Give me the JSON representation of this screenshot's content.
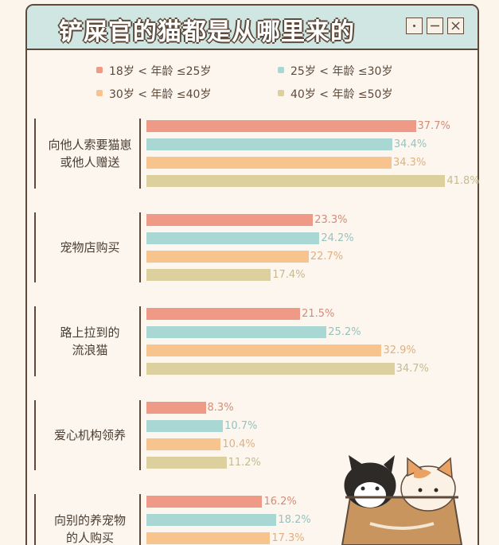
{
  "chart_data": {
    "type": "bar",
    "orientation": "horizontal",
    "title": "铲屎官的猫都是从哪里来的",
    "categories": [
      "向他人索要猫崽\n或他人赠送",
      "宠物店购买",
      "路上拉到的\n流浪猫",
      "爱心机构领养",
      "向别的养宠物\n的人购买"
    ],
    "series": [
      {
        "name": "18岁 < 年龄 ≤25岁",
        "color": "#ee9a86",
        "values": [
          37.7,
          23.3,
          21.5,
          8.3,
          16.2
        ],
        "value_labels": [
          "37.7%",
          "23.3%",
          "21.5%",
          "8.3%",
          "16.2%"
        ]
      },
      {
        "name": "25岁 < 年龄 ≤30岁",
        "color": "#a9d8d4",
        "values": [
          34.4,
          24.2,
          25.2,
          10.7,
          18.2
        ],
        "value_labels": [
          "34.4%",
          "24.2%",
          "25.2%",
          "10.7%",
          "18.2%"
        ]
      },
      {
        "name": "30岁 < 年龄 ≤40岁",
        "color": "#f8c48e",
        "values": [
          34.3,
          22.7,
          32.9,
          10.4,
          17.3
        ],
        "value_labels": [
          "34.3%",
          "22.7%",
          "32.9%",
          "10.4%",
          "17.3%"
        ]
      },
      {
        "name": "40岁 < 年龄 ≤50岁",
        "color": "#dcd09e",
        "values": [
          41.8,
          17.4,
          34.7,
          11.2,
          null
        ],
        "value_labels": [
          "41.8%",
          "17.4%",
          "34.7%",
          "11.2%",
          null
        ]
      }
    ]
  }
}
